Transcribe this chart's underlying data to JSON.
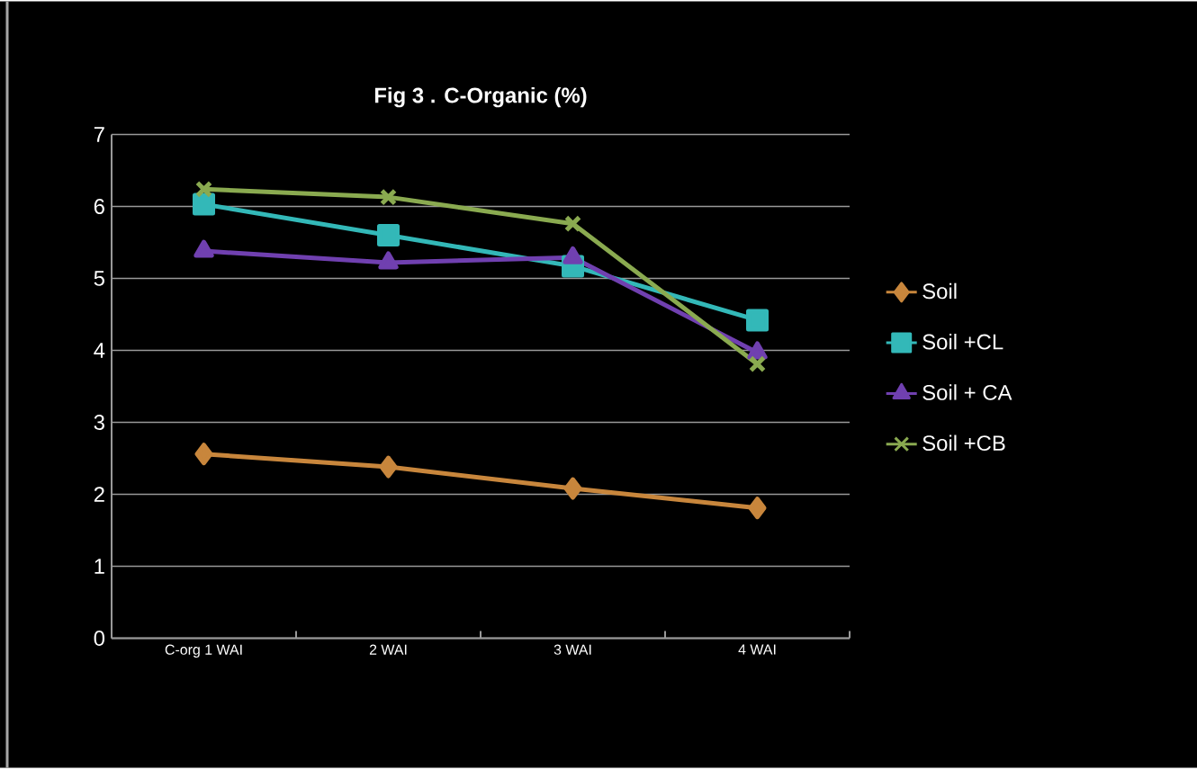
{
  "chart_data": {
    "type": "line",
    "title": "Fig 3 .  C-Organic (%)",
    "categories": [
      "C-org 1 WAI",
      "2 WAI",
      "3 WAI",
      "4 WAI"
    ],
    "series": [
      {
        "name": "Soil",
        "color": "#c8863c",
        "marker": "diamond",
        "values": [
          2.56,
          2.38,
          2.08,
          1.81
        ]
      },
      {
        "name": "Soil +CL",
        "color": "#33b8b8",
        "marker": "square",
        "values": [
          6.03,
          5.6,
          5.17,
          4.42
        ]
      },
      {
        "name": "Soil + CA",
        "color": "#7040b0",
        "marker": "triangle",
        "values": [
          5.38,
          5.22,
          5.29,
          3.97
        ]
      },
      {
        "name": "Soil +CB",
        "color": "#8aaa50",
        "marker": "cross",
        "values": [
          6.24,
          6.13,
          5.76,
          3.81
        ]
      }
    ],
    "ylim": [
      0,
      7
    ],
    "yticks": [
      0,
      1,
      2,
      3,
      4,
      5,
      6,
      7
    ],
    "grid": "y",
    "legend": "right"
  }
}
